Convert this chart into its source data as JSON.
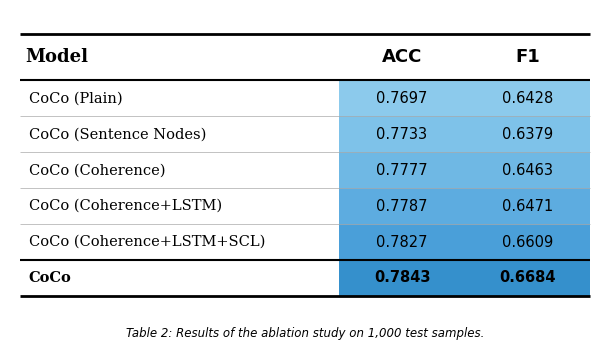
{
  "rows": [
    {
      "model": "CoCo (Plain)",
      "acc": "0.7697",
      "f1": "0.6428",
      "bold": false
    },
    {
      "model": "CoCo (Sentence Nodes)",
      "acc": "0.7733",
      "f1": "0.6379",
      "bold": false
    },
    {
      "model": "CoCo (Coherence)",
      "acc": "0.7777",
      "f1": "0.6463",
      "bold": false
    },
    {
      "model": "CoCo (Coherence+LSTM)",
      "acc": "0.7787",
      "f1": "0.6471",
      "bold": false
    },
    {
      "model": "CoCo (Coherence+LSTM+SCL)",
      "acc": "0.7827",
      "f1": "0.6609",
      "bold": false
    },
    {
      "model": "CoCo",
      "acc": "0.7843",
      "f1": "0.6684",
      "bold": true
    }
  ],
  "col_headers": [
    "Model",
    "ACC",
    "F1"
  ],
  "cell_colors_acc": [
    "#8CCAEC",
    "#7EC2E9",
    "#6FB8E4",
    "#5DACE0",
    "#4A9FD9",
    "#3590CC"
  ],
  "cell_colors_f1": [
    "#8CCAEC",
    "#7EC2E9",
    "#6FB8E4",
    "#5DACE0",
    "#4A9FD9",
    "#3590CC"
  ],
  "bg_color": "#FFFFFF",
  "caption": "Table 2: Results of the ablation study on 1,000 test samples.",
  "fig_width": 6.1,
  "fig_height": 3.62
}
